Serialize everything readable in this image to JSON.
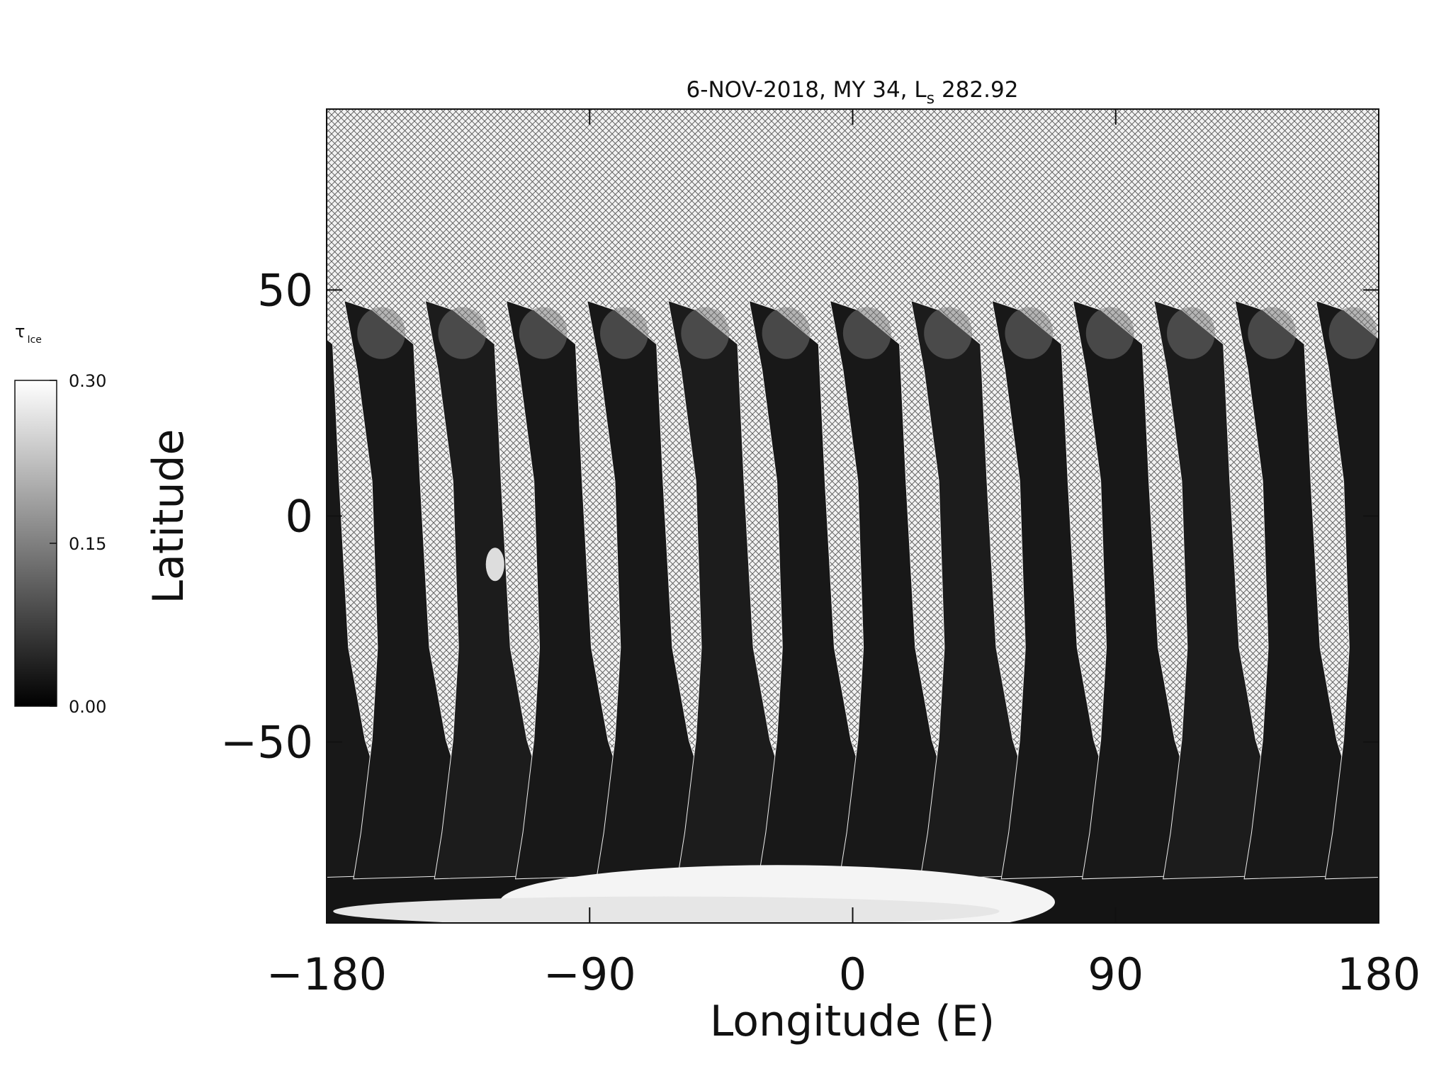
{
  "chart_data": {
    "type": "map",
    "title_parts": [
      "6-NOV-2018, MY 34,  L",
      "s",
      " 282.92"
    ],
    "xlabel": "Longitude (E)",
    "ylabel": "Latitude",
    "xlim": [
      -180,
      180
    ],
    "xticks": [
      {
        "value": -180,
        "label": "−180"
      },
      {
        "value": -90,
        "label": "−90"
      },
      0,
      90,
      180
    ],
    "ylim": [
      -90,
      90
    ],
    "yticks": [
      {
        "value": -50,
        "label": "−50"
      },
      0,
      50
    ],
    "colorbar": {
      "label": "τ",
      "label_subscript": "Ice",
      "lim": [
        0,
        0.3
      ],
      "ticks": [
        {
          "value": 0,
          "label": "0.00"
        },
        {
          "value": 0.15,
          "label": "0.15"
        },
        {
          "value": 0.3,
          "label": "0.30"
        }
      ]
    }
  }
}
